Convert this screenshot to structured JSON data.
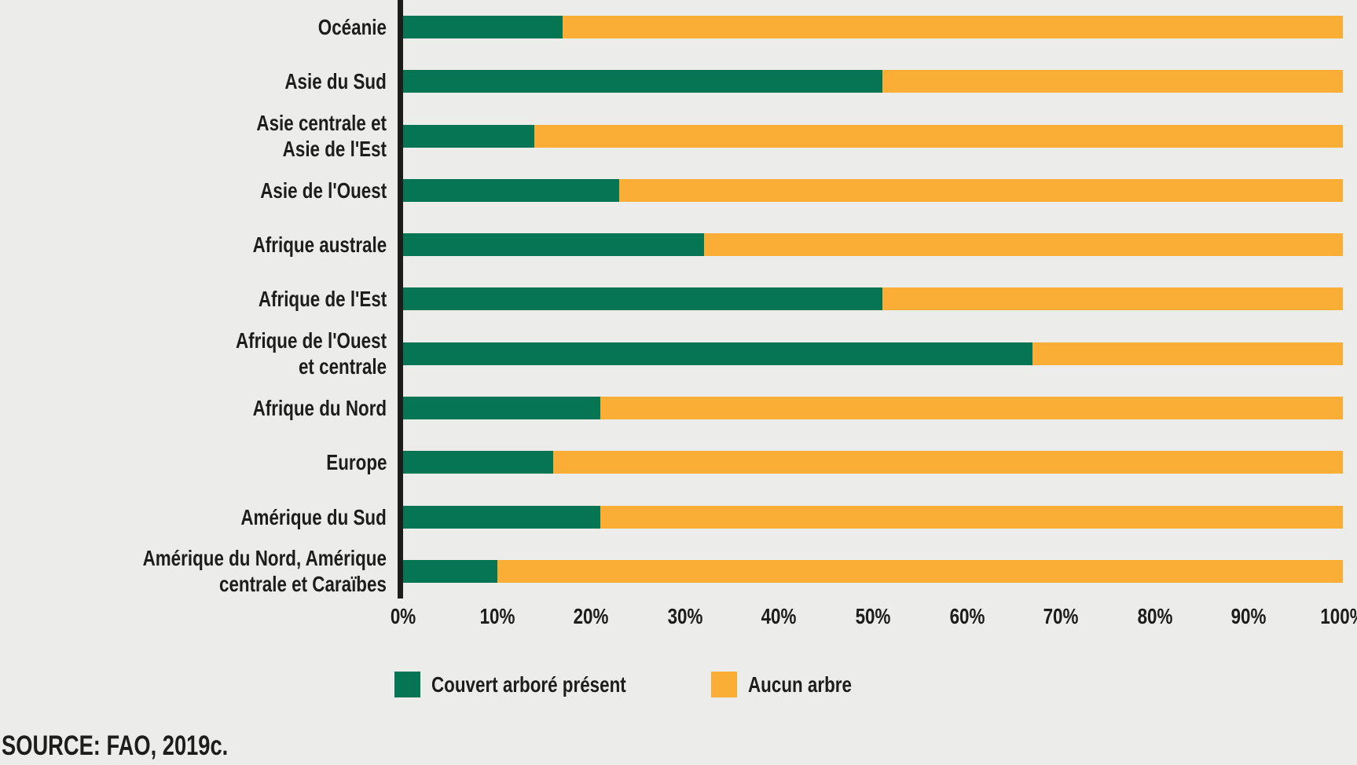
{
  "chart_data": {
    "type": "bar",
    "orientation": "horizontal",
    "stacked": true,
    "unit": "percent",
    "categories": [
      "Océanie",
      "Asie du Sud",
      "Asie centrale et\nAsie de l'Est",
      "Asie de l'Ouest",
      "Afrique australe",
      "Afrique de l'Est",
      "Afrique de l'Ouest\net centrale",
      "Afrique du Nord",
      "Europe",
      "Amérique du Sud",
      "Amérique du Nord, Amérique\ncentrale et Caraïbes"
    ],
    "series": [
      {
        "name": "Couvert arboré présent",
        "color": "#057554",
        "values": [
          17,
          51,
          14,
          23,
          32,
          51,
          67,
          21,
          16,
          21,
          10
        ]
      },
      {
        "name": "Aucun arbre",
        "color": "#FBAE35",
        "values": [
          83,
          49,
          86,
          77,
          68,
          49,
          33,
          79,
          84,
          79,
          90
        ]
      }
    ],
    "x_ticks": [
      "0%",
      "10%",
      "20%",
      "30%",
      "40%",
      "50%",
      "60%",
      "70%",
      "80%",
      "90%",
      "100%"
    ],
    "xlim": [
      0,
      100
    ],
    "grid": false,
    "legend_position": "bottom",
    "title": ""
  },
  "source": "SOURCE: FAO, 2019c.",
  "colors": {
    "background": "#ECECEA",
    "axis": "#1D1D1B",
    "text": "#1D1D1B",
    "tree_cover_green": "#057554",
    "no_tree_orange": "#FBAE35"
  }
}
